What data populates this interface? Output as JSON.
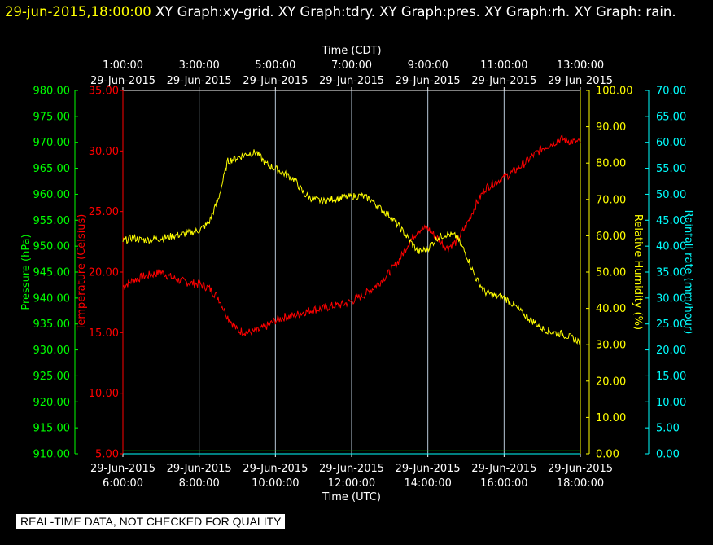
{
  "header": {
    "timestamp": "29-jun-2015,18:00:00",
    "graphs": "XY Graph:xy-grid.  XY Graph:tdry.  XY Graph:pres.  XY Graph:rh.  XY Graph: rain."
  },
  "quality_notice": "REAL-TIME DATA, NOT CHECKED FOR QUALITY",
  "colors": {
    "temperature": "#ff0000",
    "pressure": "#00ff00",
    "humidity": "#ffff00",
    "rain": "#00ffff",
    "grid": "#ffffff",
    "pressure_line": "#00aa00"
  },
  "chart_data": {
    "type": "line",
    "x_top": {
      "title": "Time (CDT)",
      "ticks": [
        {
          "time": "1:00:00",
          "date": "29-Jun-2015"
        },
        {
          "time": "3:00:00",
          "date": "29-Jun-2015"
        },
        {
          "time": "5:00:00",
          "date": "29-Jun-2015"
        },
        {
          "time": "7:00:00",
          "date": "29-Jun-2015"
        },
        {
          "time": "9:00:00",
          "date": "29-Jun-2015"
        },
        {
          "time": "11:00:00",
          "date": "29-Jun-2015"
        },
        {
          "time": "13:00:00",
          "date": "29-Jun-2015"
        }
      ]
    },
    "x_bottom": {
      "title": "Time (UTC)",
      "ticks": [
        {
          "date": "29-Jun-2015",
          "time": "6:00:00"
        },
        {
          "date": "29-Jun-2015",
          "time": "8:00:00"
        },
        {
          "date": "29-Jun-2015",
          "time": "10:00:00"
        },
        {
          "date": "29-Jun-2015",
          "time": "12:00:00"
        },
        {
          "date": "29-Jun-2015",
          "time": "14:00:00"
        },
        {
          "date": "29-Jun-2015",
          "time": "16:00:00"
        },
        {
          "date": "29-Jun-2015",
          "time": "18:00:00"
        }
      ],
      "range_hours_utc": [
        6,
        18
      ]
    },
    "axes": {
      "pressure": {
        "label": "Pressure (hPa)",
        "range": [
          910,
          980
        ],
        "ticks": [
          "980.00",
          "975.00",
          "970.00",
          "965.00",
          "960.00",
          "955.00",
          "950.00",
          "945.00",
          "940.00",
          "935.00",
          "930.00",
          "925.00",
          "920.00",
          "915.00",
          "910.00"
        ]
      },
      "temperature": {
        "label": "Temperature (Celsius)",
        "range": [
          5,
          35
        ],
        "ticks": [
          "35.00",
          "30.00",
          "25.00",
          "20.00",
          "15.00",
          "10.00",
          "5.00"
        ]
      },
      "humidity": {
        "label": "Relative Humidity (%)",
        "range": [
          0,
          100
        ],
        "ticks": [
          "100.00",
          "90.00",
          "80.00",
          "70.00",
          "60.00",
          "50.00",
          "40.00",
          "30.00",
          "20.00",
          "10.00",
          "0.00"
        ]
      },
      "rain": {
        "label": "Rainfall rate (mm/hour)",
        "range": [
          0,
          70
        ],
        "ticks": [
          "70.00",
          "65.00",
          "60.00",
          "55.00",
          "50.00",
          "45.00",
          "40.00",
          "35.00",
          "30.00",
          "25.00",
          "20.00",
          "15.00",
          "10.00",
          "5.00",
          "0.00"
        ]
      }
    },
    "series": [
      {
        "name": "tdry",
        "axis": "temperature",
        "x": [
          6.0,
          6.25,
          6.5,
          6.75,
          7.0,
          7.25,
          7.5,
          7.75,
          8.0,
          8.25,
          8.5,
          8.75,
          9.0,
          9.25,
          9.5,
          9.75,
          10.0,
          10.25,
          10.5,
          10.75,
          11.0,
          11.25,
          11.5,
          11.75,
          12.0,
          12.25,
          12.5,
          12.75,
          13.0,
          13.25,
          13.5,
          13.75,
          14.0,
          14.25,
          14.5,
          14.75,
          15.0,
          15.25,
          15.5,
          15.75,
          16.0,
          16.25,
          16.5,
          16.75,
          17.0,
          17.25,
          17.5,
          17.75,
          18.0
        ],
        "y": [
          18.8,
          19.3,
          19.6,
          19.8,
          20.0,
          19.6,
          19.3,
          19.1,
          19.0,
          18.7,
          17.9,
          16.3,
          15.2,
          15.0,
          15.1,
          15.5,
          16.0,
          16.3,
          16.4,
          16.7,
          16.9,
          17.0,
          17.2,
          17.3,
          17.6,
          18.0,
          18.5,
          19.2,
          20.0,
          21.0,
          22.4,
          23.5,
          23.6,
          22.8,
          22.0,
          22.5,
          23.8,
          25.5,
          26.9,
          27.4,
          27.8,
          28.3,
          28.9,
          29.6,
          30.2,
          30.6,
          31.0,
          30.8,
          30.7
        ]
      },
      {
        "name": "rh",
        "axis": "humidity",
        "x": [
          6.0,
          6.25,
          6.5,
          6.75,
          7.0,
          7.25,
          7.5,
          7.75,
          8.0,
          8.25,
          8.5,
          8.75,
          9.0,
          9.25,
          9.5,
          9.75,
          10.0,
          10.25,
          10.5,
          10.75,
          11.0,
          11.25,
          11.5,
          11.75,
          12.0,
          12.25,
          12.5,
          12.75,
          13.0,
          13.25,
          13.5,
          13.75,
          14.0,
          14.25,
          14.5,
          14.75,
          15.0,
          15.25,
          15.5,
          15.75,
          16.0,
          16.25,
          16.5,
          16.75,
          17.0,
          17.25,
          17.5,
          17.75,
          18.0
        ],
        "y": [
          58.5,
          59.5,
          58.8,
          59.0,
          59.3,
          59.8,
          60.3,
          60.8,
          61.5,
          63.5,
          70.0,
          80.5,
          81.5,
          82.5,
          83.0,
          79.8,
          78.5,
          77.0,
          75.5,
          71.5,
          70.0,
          69.5,
          70.2,
          70.5,
          70.8,
          71.0,
          70.0,
          67.5,
          65.5,
          62.5,
          59.0,
          55.5,
          56.5,
          59.5,
          60.5,
          59.8,
          55.0,
          48.5,
          44.5,
          43.5,
          43.0,
          41.0,
          38.5,
          36.5,
          34.5,
          33.5,
          33.0,
          32.0,
          30.8
        ]
      },
      {
        "name": "pres",
        "axis": "pressure",
        "x": [
          6.0,
          18.0
        ],
        "y": [
          910.6,
          910.6
        ]
      },
      {
        "name": "rain",
        "axis": "rain",
        "x": [
          6.0,
          18.0
        ],
        "y": [
          0.0,
          0.0
        ]
      }
    ],
    "grid": true
  }
}
